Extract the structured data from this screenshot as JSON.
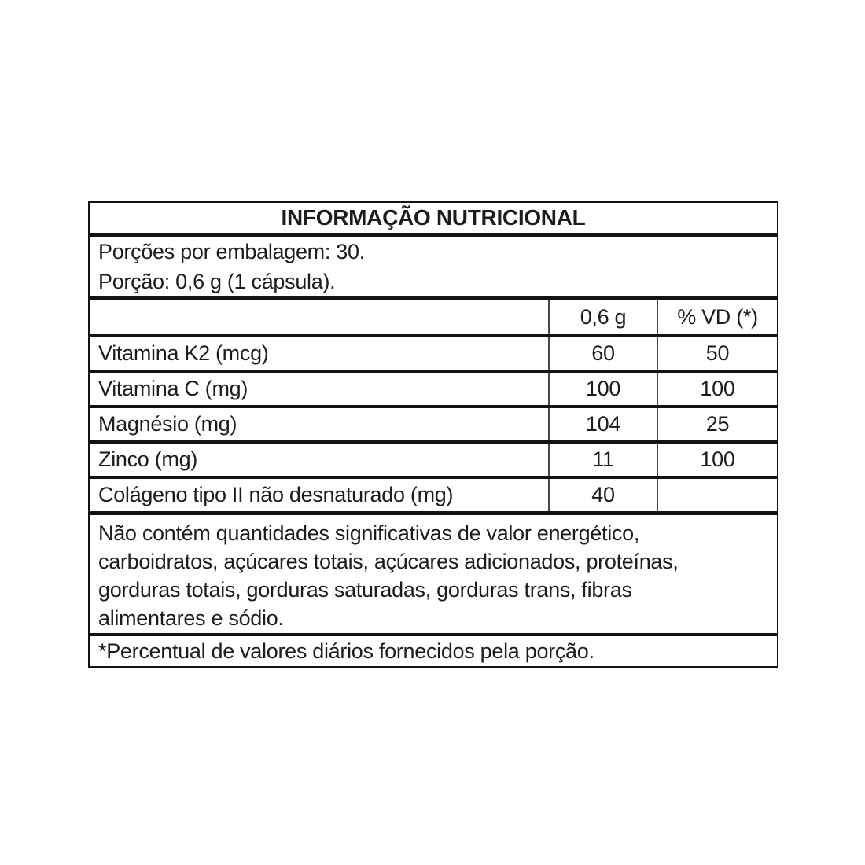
{
  "table": {
    "title": "INFORMAÇÃO NUTRICIONAL",
    "serving_lines": {
      "line1": "Porções por embalagem: 30.",
      "line2": "Porção: 0,6 g (1 cápsula)."
    },
    "columns": {
      "amount_header": "0,6 g",
      "dv_header": "% VD (*)"
    },
    "rows": [
      {
        "label": "Vitamina K2 (mcg)",
        "amount": "60",
        "dv": "50"
      },
      {
        "label": "Vitamina C (mg)",
        "amount": "100",
        "dv": "100"
      },
      {
        "label": "Magnésio (mg)",
        "amount": "104",
        "dv": "25"
      },
      {
        "label": "Zinco (mg)",
        "amount": "11",
        "dv": "100"
      },
      {
        "label": "Colágeno tipo II não desnaturado (mg)",
        "amount": "40",
        "dv": ""
      }
    ],
    "note_lines": {
      "line1": "Não contém quantidades significativas de valor energético,",
      "line2": "carboidratos, açúcares totais, açúcares adicionados, proteínas,",
      "line3": "gorduras totais, gorduras saturadas, gorduras trans, fibras",
      "line4": "alimentares e sódio."
    },
    "footnote": "*Percentual de valores diários fornecidos pela porção."
  },
  "colors": {
    "background": "#ffffff",
    "text": "#1c1c1c",
    "border": "#121212",
    "column_divider": "#474747"
  }
}
